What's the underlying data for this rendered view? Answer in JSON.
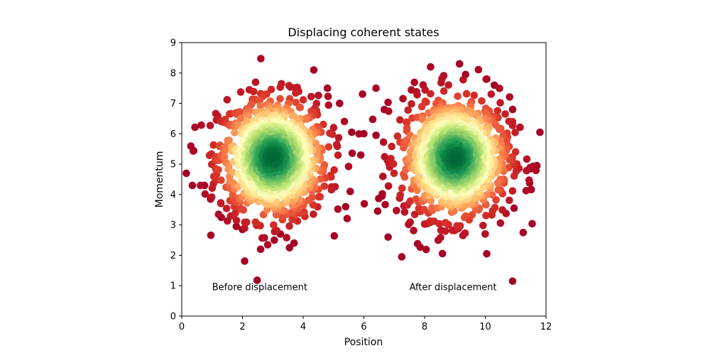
{
  "chart_data": {
    "type": "scatter",
    "title": "Displacing coherent states",
    "xlabel": "Position",
    "ylabel": "Momentum",
    "xlim": [
      0,
      12
    ],
    "ylim": [
      0,
      9
    ],
    "xticks": [
      0,
      2,
      4,
      6,
      8,
      10,
      12
    ],
    "yticks": [
      0,
      1,
      2,
      3,
      4,
      5,
      6,
      7,
      8,
      9
    ],
    "grid": false,
    "colormap": [
      "#a50026",
      "#d73027",
      "#f46d43",
      "#fdae61",
      "#fee08b",
      "#ffffbf",
      "#d9ef8b",
      "#a6d96a",
      "#66bd63",
      "#1a9850",
      "#006837"
    ],
    "color_meaning": "point density",
    "series": [
      {
        "center": [
          3.0,
          5.2
        ],
        "spread": [
          0.9,
          1.0
        ],
        "count": 1000
      },
      {
        "center": [
          9.0,
          5.2
        ],
        "spread": [
          0.9,
          1.0
        ],
        "count": 1000
      }
    ],
    "outliers": [
      [
        0.15,
        4.7
      ],
      [
        0.35,
        4.3
      ],
      [
        0.75,
        4.3
      ],
      [
        0.95,
        3.85
      ],
      [
        1.3,
        3.25
      ],
      [
        1.8,
        2.95
      ],
      [
        2.0,
        2.85
      ],
      [
        2.6,
        2.2
      ],
      [
        3.05,
        2.5
      ],
      [
        3.25,
        2.7
      ],
      [
        3.55,
        2.25
      ],
      [
        3.7,
        2.4
      ],
      [
        4.35,
        8.1
      ],
      [
        4.8,
        7.5
      ],
      [
        5.2,
        7.0
      ],
      [
        5.6,
        6.05
      ],
      [
        6.0,
        6.0
      ],
      [
        5.9,
        5.3
      ],
      [
        5.55,
        4.1
      ],
      [
        5.4,
        3.6
      ],
      [
        6.4,
        5.95
      ],
      [
        6.4,
        7.5
      ],
      [
        6.6,
        3.95
      ],
      [
        6.8,
        2.6
      ],
      [
        7.25,
        1.95
      ],
      [
        8.2,
        8.2
      ],
      [
        9.15,
        8.3
      ],
      [
        9.35,
        7.95
      ],
      [
        10.05,
        7.8
      ],
      [
        10.3,
        7.6
      ],
      [
        10.9,
        6.8
      ],
      [
        11.8,
        6.05
      ],
      [
        11.25,
        2.75
      ],
      [
        10.05,
        2.05
      ],
      [
        10.9,
        1.15
      ],
      [
        11.7,
        4.95
      ],
      [
        11.5,
        4.85
      ],
      [
        10.95,
        3.55
      ]
    ],
    "annotations": [
      {
        "text": "Before displacement",
        "x": 1.0,
        "y": 0.85
      },
      {
        "text": "After displacement",
        "x": 7.5,
        "y": 0.85
      }
    ]
  }
}
